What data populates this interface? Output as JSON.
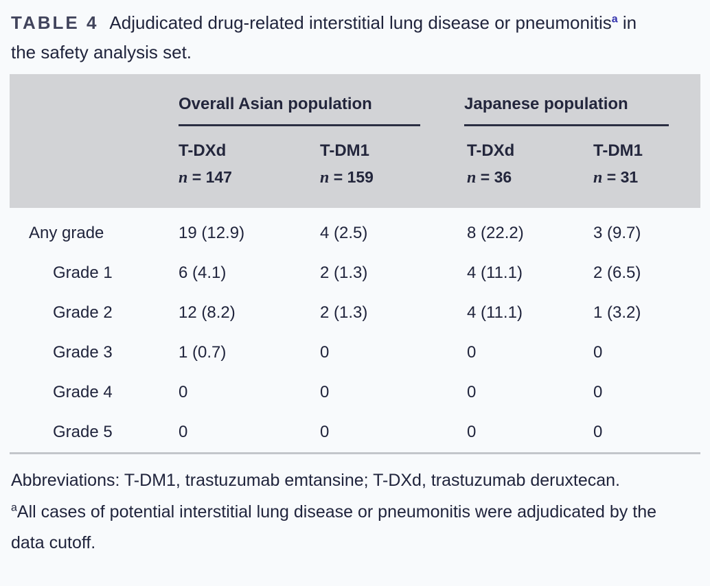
{
  "title": {
    "tag": "TABLE 4",
    "before_sup": "Adjudicated drug-related interstitial lung disease or pneumonitis",
    "sup_marker": "a",
    "after_sup": " in the safety analysis set."
  },
  "table": {
    "group_headers": [
      {
        "label": "Overall Asian population"
      },
      {
        "label": "Japanese population"
      }
    ],
    "columns": [
      {
        "drug": "T-DXd",
        "n_prefix": "n",
        "n_rest": " = 147"
      },
      {
        "drug": "T-DM1",
        "n_prefix": "n",
        "n_rest": " = 159"
      },
      {
        "drug": "T-DXd",
        "n_prefix": "n",
        "n_rest": " = 36"
      },
      {
        "drug": "T-DM1",
        "n_prefix": "n",
        "n_rest": " = 31"
      }
    ],
    "rows": [
      {
        "label": "Any grade",
        "values": [
          "19 (12.9)",
          "4 (2.5)",
          "8 (22.2)",
          "3 (9.7)"
        ]
      },
      {
        "label": "Grade 1",
        "values": [
          "6 (4.1)",
          "2 (1.3)",
          "4 (11.1)",
          "2 (6.5)"
        ]
      },
      {
        "label": "Grade 2",
        "values": [
          "12 (8.2)",
          "2 (1.3)",
          "4 (11.1)",
          "1 (3.2)"
        ]
      },
      {
        "label": "Grade 3",
        "values": [
          "1 (0.7)",
          "0",
          "0",
          "0"
        ]
      },
      {
        "label": "Grade 4",
        "values": [
          "0",
          "0",
          "0",
          "0"
        ]
      },
      {
        "label": "Grade 5",
        "values": [
          "0",
          "0",
          "0",
          "0"
        ]
      }
    ]
  },
  "footnotes": {
    "abbreviations": "Abbreviations: T-DM1, trastuzumab emtansine; T-DXd, trastuzumab deruxtecan.",
    "note_a_marker": "a",
    "note_a": "All cases of potential interstitial lung disease or pneumonitis were adjudicated by the data cutoff."
  },
  "colors": {
    "header_background": "#d2d3d6",
    "text": "#20243c",
    "superscript_accent": "#3231ad",
    "group_underline": "#2a2d42",
    "table_bottom_border": "#c3c6ca",
    "page_background": "#f8fafc"
  }
}
